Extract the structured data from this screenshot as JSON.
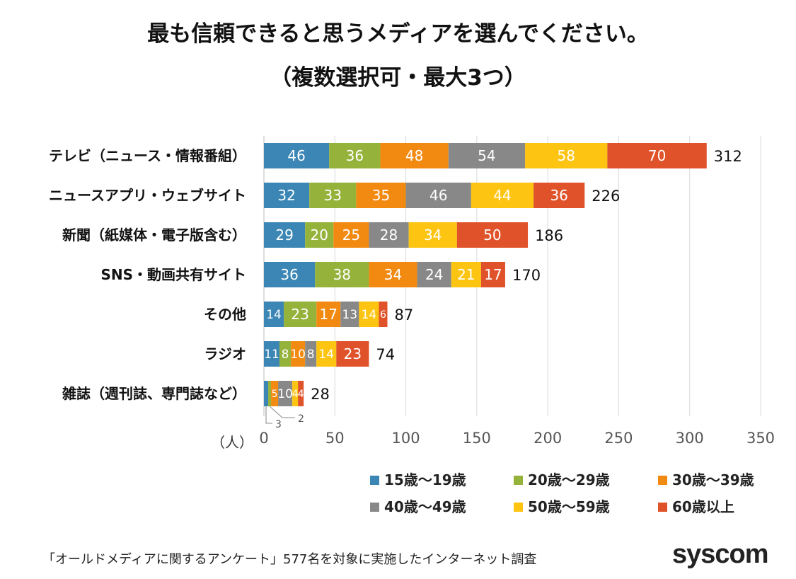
{
  "chart_data": {
    "type": "bar",
    "orientation": "horizontal",
    "stacked": true,
    "title": "最も信頼できると思うメディアを選んでください。",
    "subtitle": "（複数選択可・最大3つ）",
    "xlabel": "（人）",
    "xlim": [
      0,
      350
    ],
    "xticks": [
      0,
      50,
      100,
      150,
      200,
      250,
      300,
      350
    ],
    "grid": true,
    "legend_position": "bottom",
    "categories": [
      "テレビ（ニュース・情報番組）",
      "ニュースアプリ・ウェブサイト",
      "新聞（紙媒体・電子版含む）",
      "SNS・動画共有サイト",
      "その他",
      "ラジオ",
      "雑誌（週刊誌、専門誌など）"
    ],
    "totals": [
      312,
      226,
      186,
      170,
      87,
      74,
      28
    ],
    "series": [
      {
        "name": "15歳～19歳",
        "color": "#3b86b5",
        "values": [
          46,
          32,
          29,
          36,
          14,
          11,
          3
        ]
      },
      {
        "name": "20歳～29歳",
        "color": "#95b23a",
        "values": [
          36,
          33,
          20,
          38,
          23,
          8,
          2
        ]
      },
      {
        "name": "30歳～39歳",
        "color": "#f28a12",
        "values": [
          48,
          35,
          25,
          34,
          17,
          10,
          5
        ]
      },
      {
        "name": "40歳～49歳",
        "color": "#888888",
        "values": [
          54,
          46,
          28,
          24,
          13,
          8,
          10
        ]
      },
      {
        "name": "50歳～59歳",
        "color": "#fdc411",
        "values": [
          58,
          44,
          34,
          21,
          14,
          14,
          4
        ]
      },
      {
        "name": "60歳以上",
        "color": "#e0532a",
        "values": [
          70,
          36,
          50,
          17,
          6,
          23,
          4
        ]
      }
    ]
  },
  "footer": "「オールドメディアに関するアンケート」577名を対象に実施したインターネット調査",
  "logo": "syscom"
}
